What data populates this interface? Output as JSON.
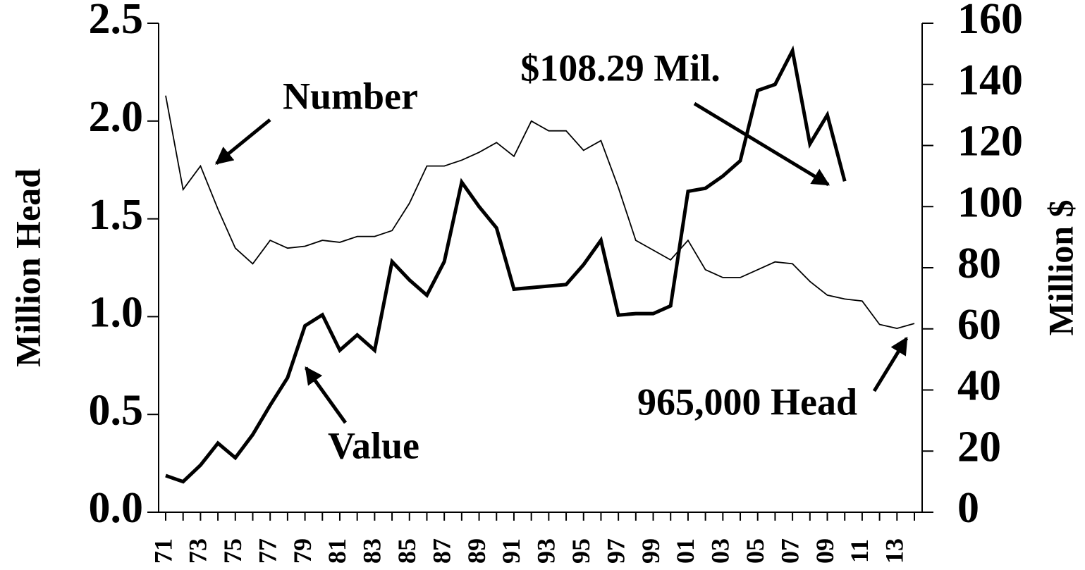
{
  "chart_data": {
    "type": "line",
    "y_label": "Million Head",
    "y2_label": "Million $",
    "categories": [
      "71",
      null,
      "73",
      null,
      "75",
      null,
      "77",
      null,
      "79",
      null,
      "81",
      null,
      "83",
      null,
      "85",
      null,
      "87",
      null,
      "89",
      null,
      "91",
      null,
      "93",
      null,
      "95",
      null,
      "97",
      null,
      "99",
      null,
      "01",
      null,
      "03",
      null,
      "05",
      null,
      "07",
      null,
      "09",
      null,
      "11",
      null,
      "13",
      null
    ],
    "series": [
      {
        "name": "Number",
        "color": "#000000",
        "axis": "y",
        "values": [
          2.13,
          1.65,
          1.77,
          1.55,
          1.35,
          1.27,
          1.39,
          1.35,
          1.36,
          1.39,
          1.38,
          1.41,
          1.41,
          1.44,
          1.58,
          1.77,
          1.77,
          1.8,
          1.84,
          1.89,
          1.82,
          2.0,
          1.95,
          1.95,
          1.85,
          1.9,
          1.66,
          1.39,
          1.34,
          1.29,
          1.39,
          1.24,
          1.2,
          1.2,
          1.24,
          1.28,
          1.27,
          1.18,
          1.11,
          1.09,
          1.08,
          0.96,
          0.94,
          0.965
        ]
      },
      {
        "name": "Value",
        "color": "#000000",
        "axis": "y2",
        "values": [
          12,
          10,
          15.4,
          22.6,
          17.8,
          25.4,
          35,
          44,
          61,
          64.6,
          53,
          58,
          53,
          82,
          76,
          71,
          82,
          108,
          100,
          93,
          73,
          73.5,
          74,
          74.5,
          81,
          89,
          64.5,
          65,
          65,
          67.5,
          105,
          106,
          110,
          115,
          138,
          140,
          151,
          120.5,
          130,
          108.29,
          null,
          null,
          null,
          null
        ]
      }
    ],
    "annotations": [
      "$108.29 Mil.",
      "965,000 Head"
    ],
    "ylim": [
      0,
      2.5
    ],
    "yticks": [
      {
        "value": 0,
        "label": "0.0"
      },
      0.5,
      {
        "value": 1,
        "label": "1.0"
      },
      1.5,
      {
        "value": 2,
        "label": "2.0"
      },
      2.5
    ],
    "y2lim": [
      0,
      160
    ],
    "y2ticks": [
      0,
      20,
      40,
      60,
      80,
      100,
      120,
      140,
      160
    ]
  }
}
